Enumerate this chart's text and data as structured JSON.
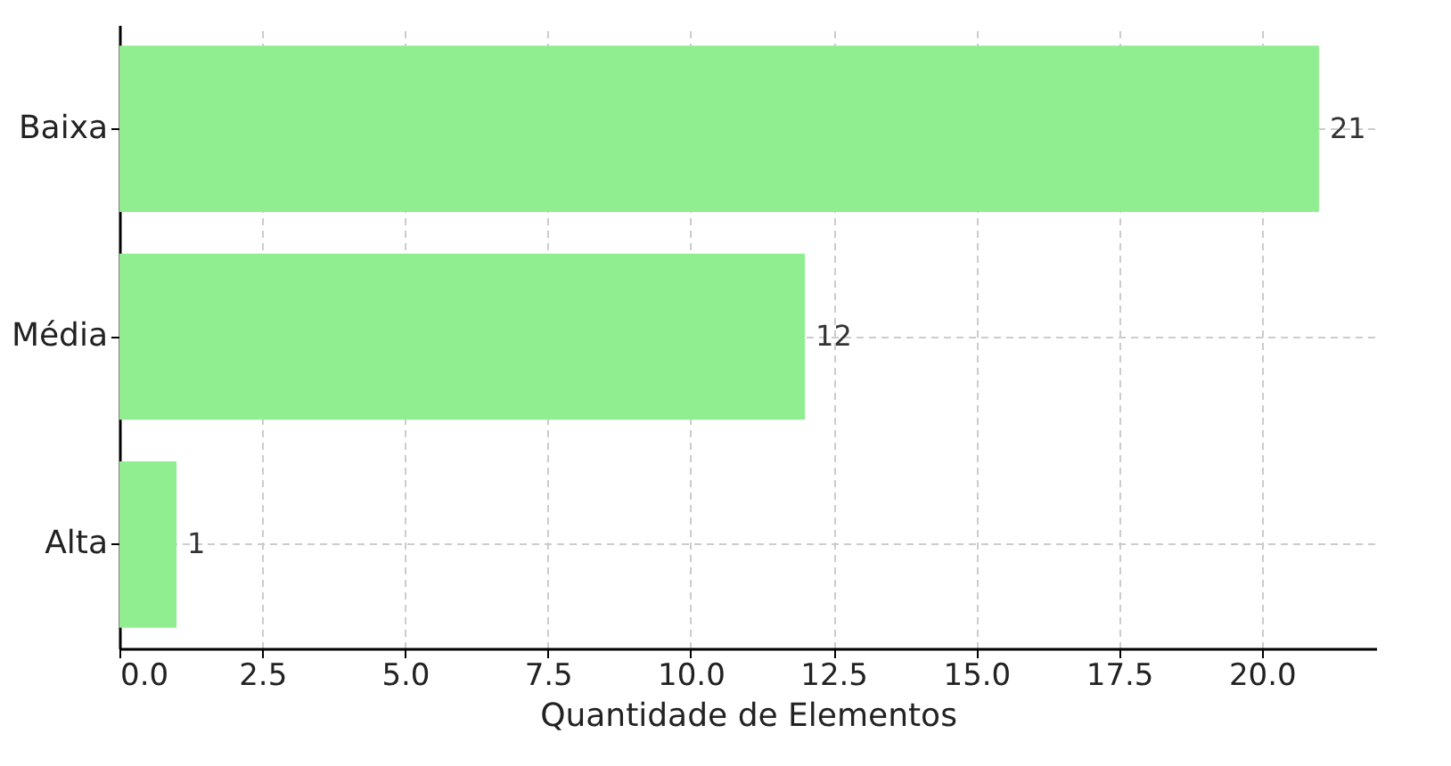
{
  "chart_data": {
    "type": "bar",
    "orientation": "horizontal",
    "categories": [
      "Baixa",
      "Média",
      "Alta"
    ],
    "values": [
      21,
      12,
      1
    ],
    "color": "#90ee90",
    "xlabel": "Quantidade de Elementos",
    "xlim": [
      0,
      22
    ],
    "xticks": [
      {
        "value": 0,
        "label": "0.0"
      },
      {
        "value": 2.5,
        "label": "2.5"
      },
      {
        "value": 5,
        "label": "5.0"
      },
      {
        "value": 7.5,
        "label": "7.5"
      },
      {
        "value": 10,
        "label": "10.0"
      },
      {
        "value": 12.5,
        "label": "12.5"
      },
      {
        "value": 15,
        "label": "15.0"
      },
      {
        "value": 17.5,
        "label": "17.5"
      },
      {
        "value": 20,
        "label": "20.0"
      }
    ],
    "grid": true,
    "data_labels": true
  }
}
